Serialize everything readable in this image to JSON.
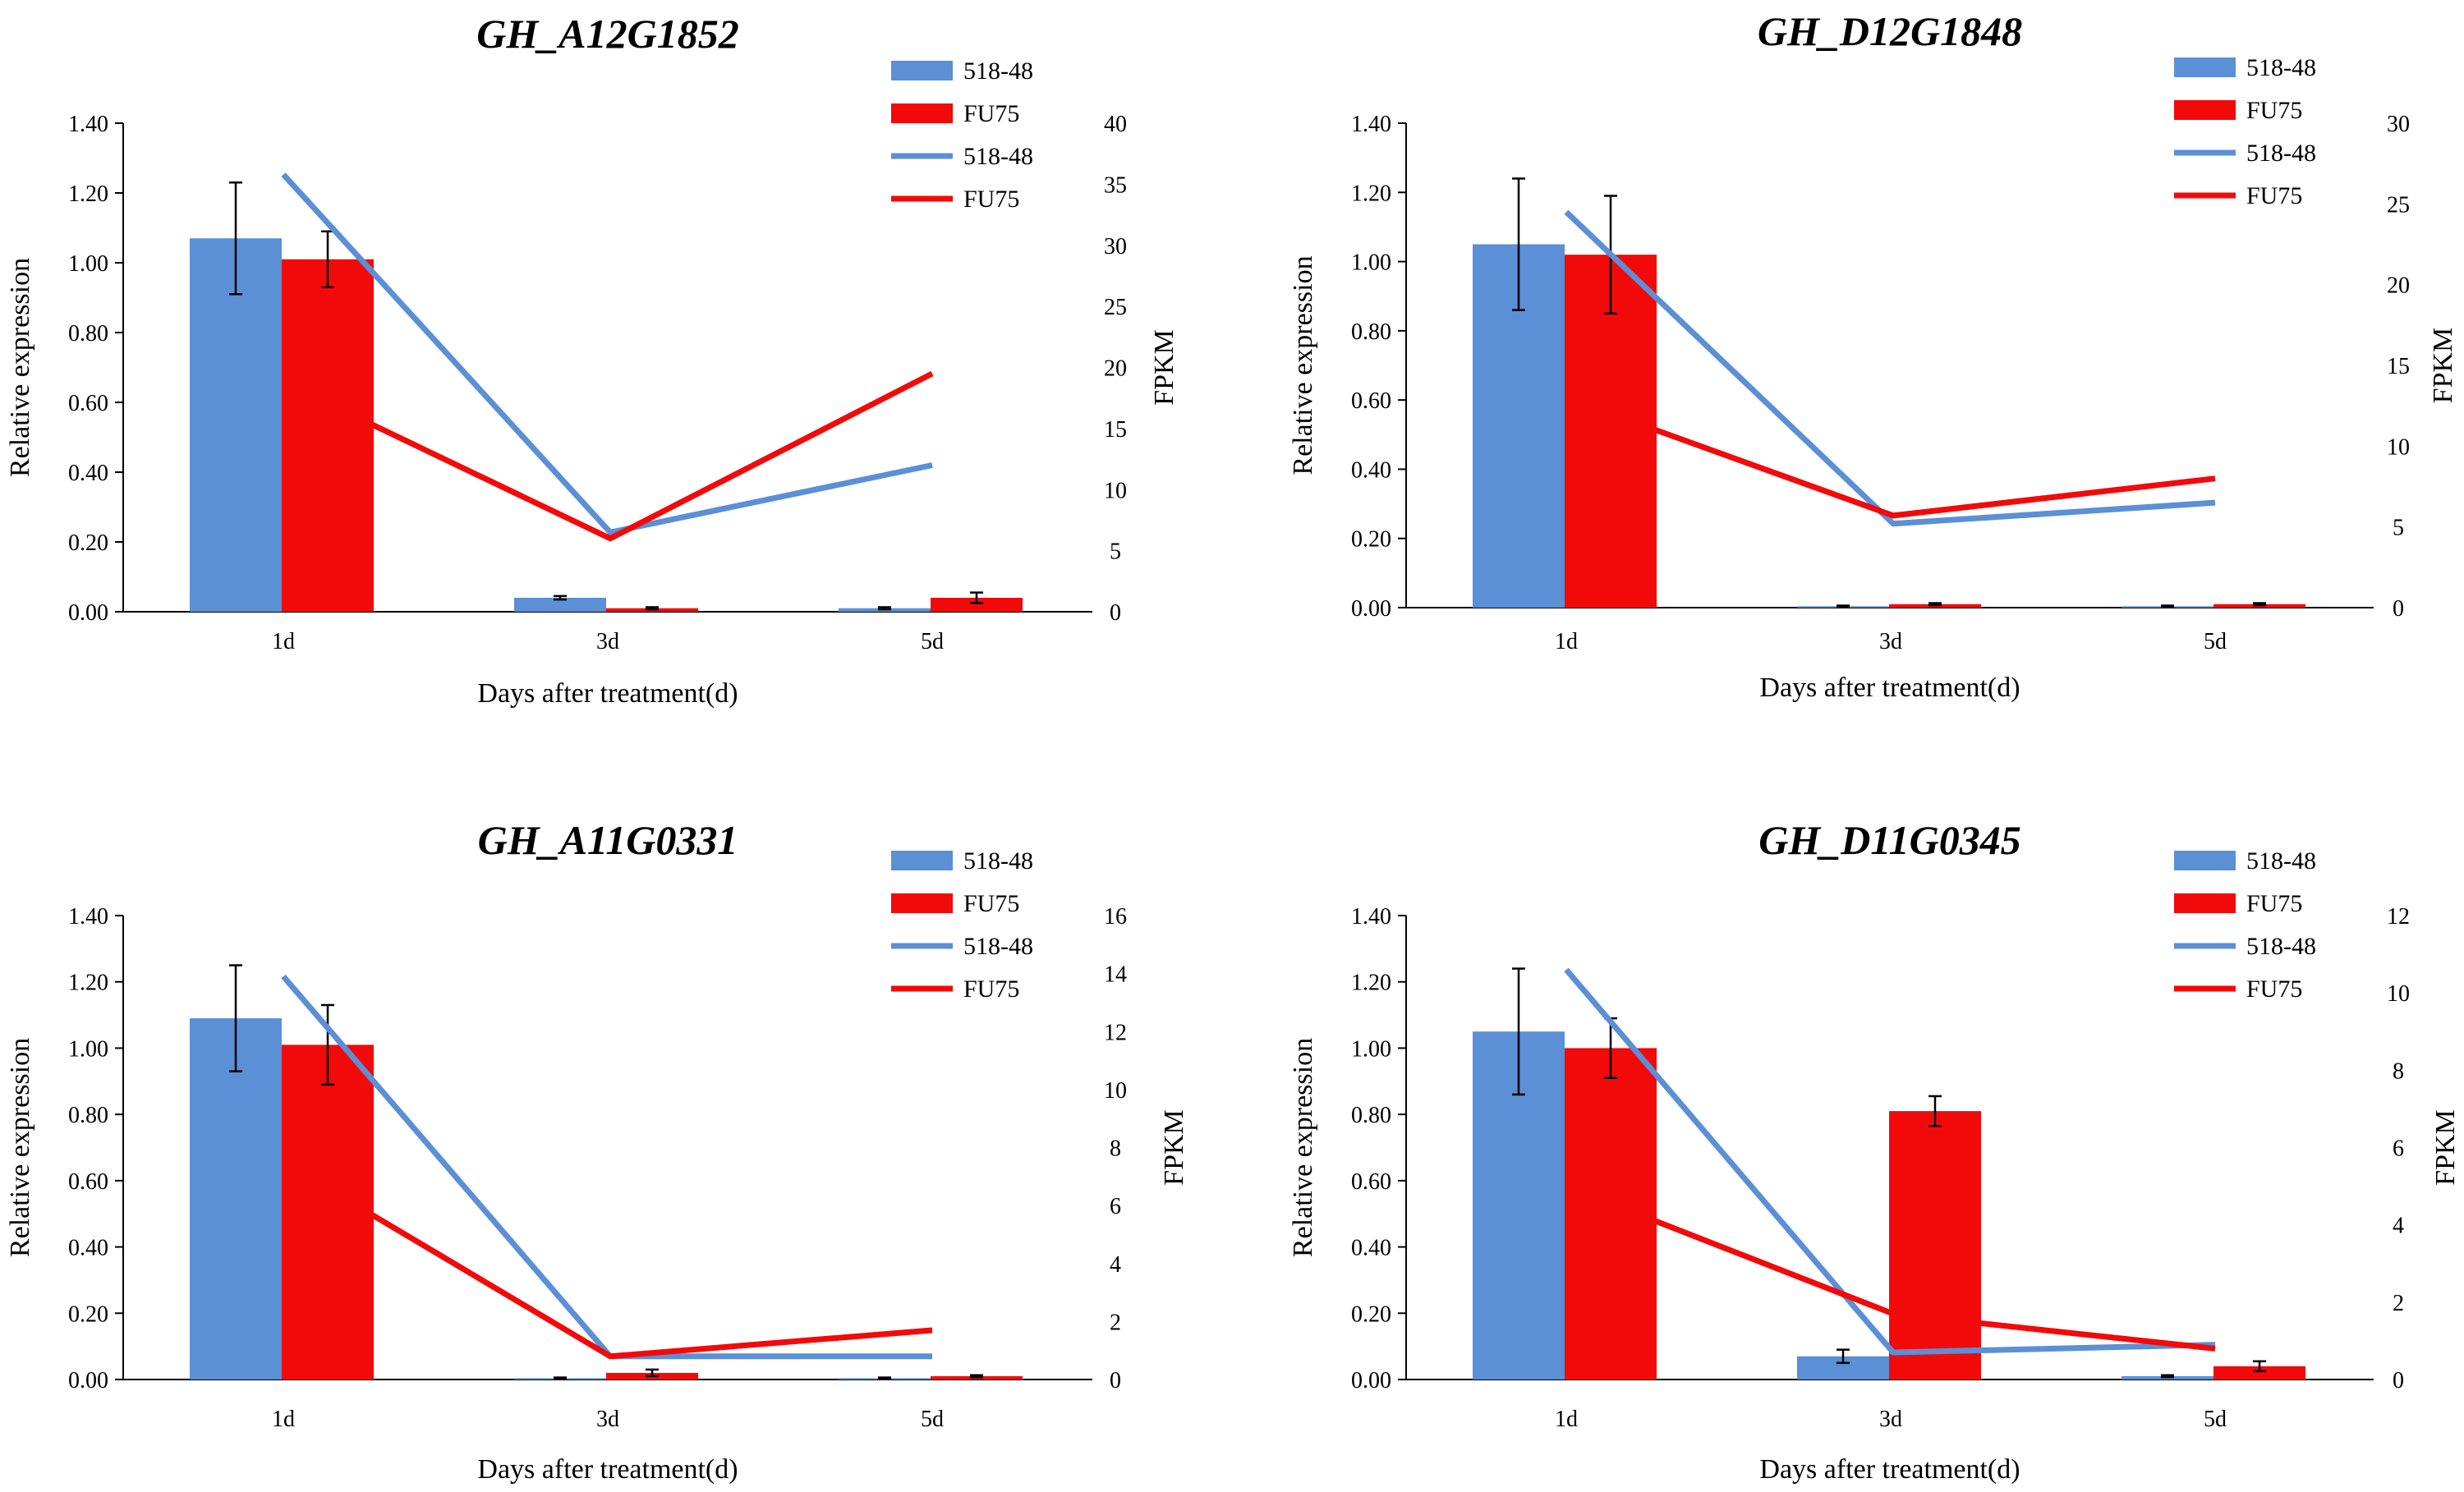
{
  "colors": {
    "blue": "#5B8FD6",
    "red": "#F20A0A",
    "axis": "#000000"
  },
  "chart_data": [
    {
      "type": "bar",
      "title": "GH_A12G1852",
      "xlabel": "Days after treatment(d)",
      "ylabel": "Relative expression",
      "y2label": "FPKM",
      "categories": [
        "1d",
        "3d",
        "5d"
      ],
      "ylim": [
        0,
        1.4
      ],
      "y_ticks": [
        "0.00",
        "0.20",
        "0.40",
        "0.60",
        "0.80",
        "1.00",
        "1.20",
        "1.40"
      ],
      "y2lim": [
        0,
        40
      ],
      "y2_ticks": [
        "0",
        "5",
        "10",
        "15",
        "20",
        "25",
        "30",
        "35",
        "40"
      ],
      "bar_series": [
        {
          "name": "518-48",
          "color": "blue",
          "values": [
            1.07,
            0.04,
            0.01
          ],
          "errors": [
            0.16,
            0.005,
            0.003
          ]
        },
        {
          "name": "FU75",
          "color": "red",
          "values": [
            1.01,
            0.01,
            0.04
          ],
          "errors": [
            0.08,
            0.003,
            0.015
          ]
        }
      ],
      "line_series": [
        {
          "name": "518-48",
          "color": "blue",
          "values": [
            35.8,
            6.5,
            12.0
          ]
        },
        {
          "name": "FU75",
          "color": "red",
          "values": [
            18.8,
            6.0,
            19.5
          ]
        }
      ],
      "legend": [
        "518-48",
        "FU75",
        "518-48",
        "FU75"
      ]
    },
    {
      "type": "bar",
      "title": "GH_D12G1848",
      "xlabel": "Days after treatment(d)",
      "ylabel": "Relative expression",
      "y2label": "FPKM",
      "categories": [
        "1d",
        "3d",
        "5d"
      ],
      "ylim": [
        0,
        1.4
      ],
      "y_ticks": [
        "0.00",
        "0.20",
        "0.40",
        "0.60",
        "0.80",
        "1.00",
        "1.20",
        "1.40"
      ],
      "y2lim": [
        0,
        30
      ],
      "y2_ticks": [
        "0",
        "5",
        "10",
        "15",
        "20",
        "25",
        "30"
      ],
      "bar_series": [
        {
          "name": "518-48",
          "color": "blue",
          "values": [
            1.05,
            0.004,
            0.004
          ],
          "errors": [
            0.19,
            0.002,
            0.002
          ]
        },
        {
          "name": "FU75",
          "color": "red",
          "values": [
            1.02,
            0.01,
            0.01
          ],
          "errors": [
            0.17,
            0.003,
            0.003
          ]
        }
      ],
      "line_series": [
        {
          "name": "518-48",
          "color": "blue",
          "values": [
            24.5,
            5.2,
            6.5
          ]
        },
        {
          "name": "FU75",
          "color": "red",
          "values": [
            13.0,
            5.7,
            8.0
          ]
        }
      ],
      "legend": [
        "518-48",
        "FU75",
        "518-48",
        "FU75"
      ]
    },
    {
      "type": "bar",
      "title": "GH_A11G0331",
      "xlabel": "Days after treatment(d)",
      "ylabel": "Relative expression",
      "y2label": "FPKM",
      "categories": [
        "1d",
        "3d",
        "5d"
      ],
      "ylim": [
        0,
        1.4
      ],
      "y_ticks": [
        "0.00",
        "0.20",
        "0.40",
        "0.60",
        "0.80",
        "1.00",
        "1.20",
        "1.40"
      ],
      "y2lim": [
        0,
        16
      ],
      "y2_ticks": [
        "0",
        "2",
        "4",
        "6",
        "8",
        "10",
        "12",
        "14",
        "16"
      ],
      "bar_series": [
        {
          "name": "518-48",
          "color": "blue",
          "values": [
            1.09,
            0.004,
            0.004
          ],
          "errors": [
            0.16,
            0.002,
            0.002
          ]
        },
        {
          "name": "FU75",
          "color": "red",
          "values": [
            1.01,
            0.02,
            0.01
          ],
          "errors": [
            0.12,
            0.01,
            0.003
          ]
        }
      ],
      "line_series": [
        {
          "name": "518-48",
          "color": "blue",
          "values": [
            13.9,
            0.8,
            0.8
          ]
        },
        {
          "name": "FU75",
          "color": "red",
          "values": [
            7.5,
            0.8,
            1.7
          ]
        }
      ],
      "legend": [
        "518-48",
        "FU75",
        "518-48",
        "FU75"
      ]
    },
    {
      "type": "bar",
      "title": "GH_D11G0345",
      "xlabel": "Days after treatment(d)",
      "ylabel": "Relative expression",
      "y2label": "FPKM",
      "categories": [
        "1d",
        "3d",
        "5d"
      ],
      "ylim": [
        0,
        1.4
      ],
      "y_ticks": [
        "0.00",
        "0.20",
        "0.40",
        "0.60",
        "0.80",
        "1.00",
        "1.20",
        "1.40"
      ],
      "y2lim": [
        0,
        12
      ],
      "y2_ticks": [
        "0",
        "2",
        "4",
        "6",
        "8",
        "10",
        "12"
      ],
      "bar_series": [
        {
          "name": "518-48",
          "color": "blue",
          "values": [
            1.05,
            0.07,
            0.01
          ],
          "errors": [
            0.19,
            0.02,
            0.003
          ]
        },
        {
          "name": "FU75",
          "color": "red",
          "values": [
            1.0,
            0.81,
            0.04
          ],
          "errors": [
            0.09,
            0.045,
            0.015
          ]
        }
      ],
      "line_series": [
        {
          "name": "518-48",
          "color": "blue",
          "values": [
            10.6,
            0.7,
            0.9
          ]
        },
        {
          "name": "FU75",
          "color": "red",
          "values": [
            5.0,
            1.7,
            0.8
          ]
        }
      ],
      "legend": [
        "518-48",
        "FU75",
        "518-48",
        "FU75"
      ]
    }
  ]
}
